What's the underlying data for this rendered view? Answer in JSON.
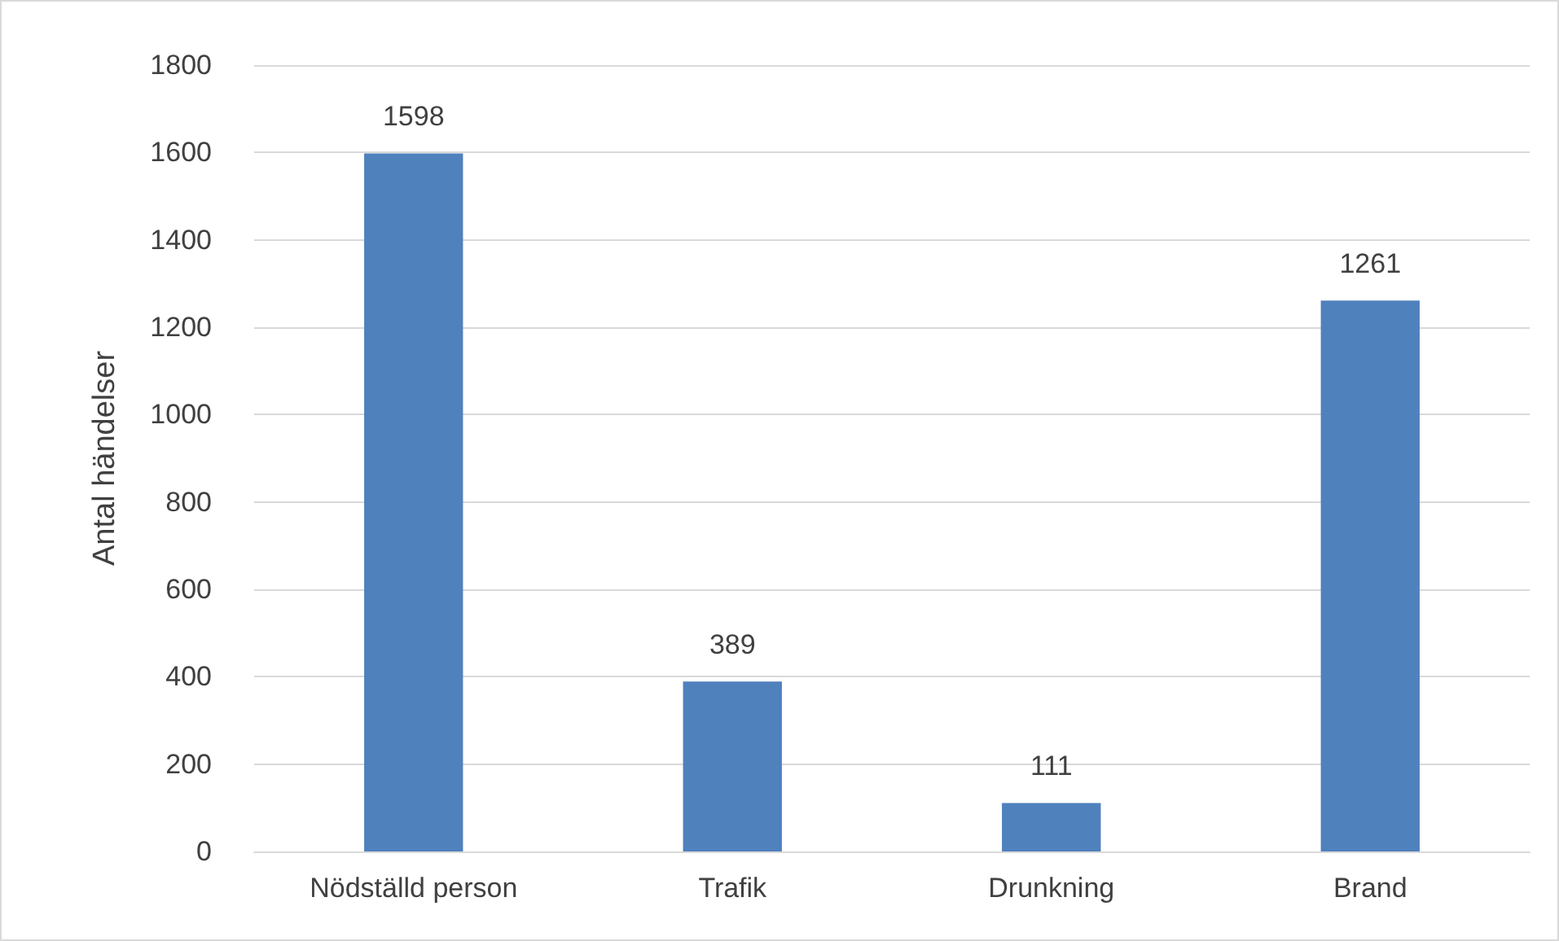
{
  "chart_data": {
    "type": "bar",
    "ylabel": "Antal händelser",
    "categories": [
      "Nödställd person",
      "Trafik",
      "Drunkning",
      "Brand"
    ],
    "values": [
      1598,
      389,
      111,
      1261
    ],
    "color": "#4f81bd",
    "ylim": [
      0,
      1800
    ],
    "yticks": [
      0,
      200,
      400,
      600,
      800,
      1000,
      1200,
      1400,
      1600,
      1800
    ],
    "grid": "y",
    "data_labels": true
  }
}
